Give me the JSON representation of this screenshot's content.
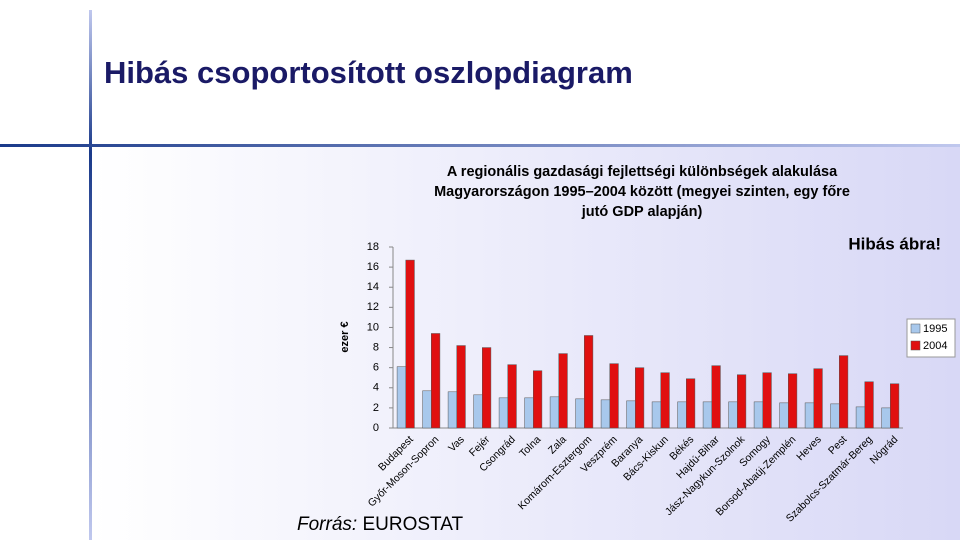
{
  "slide_title": "Hibás csoportosított oszlopdiagram",
  "source": {
    "label": "Forrás:",
    "text": "EUROSTAT"
  },
  "chart_data": {
    "type": "bar",
    "title": [
      "A regionális gazdasági fejlettségi különbségek alakulása",
      "Magyarországon 1995–2004 között (megyei szinten, egy főre",
      "jutó GDP alapján)"
    ],
    "annotation": "Hibás ábra!",
    "y_label": "ezer €",
    "categories": [
      "Budapest",
      "Győr-Moson-Sopron",
      "Vas",
      "Fejér",
      "Csongrád",
      "Tolna",
      "Zala",
      "Komárom-Esztergom",
      "Veszprém",
      "Baranya",
      "Bács-Kiskun",
      "Békés",
      "Hajdú-Bihar",
      "Jász-Nagykun-Szolnok",
      "Somogy",
      "Borsod-Abaúj-Zemplén",
      "Heves",
      "Pest",
      "Szabolcs-Szatmár-Bereg",
      "Nógrád"
    ],
    "series": [
      {
        "name": "1995",
        "color": "#a8c8ec",
        "values": [
          6.1,
          3.7,
          3.6,
          3.3,
          3.0,
          3.0,
          3.1,
          2.9,
          2.8,
          2.7,
          2.6,
          2.6,
          2.6,
          2.6,
          2.6,
          2.5,
          2.5,
          2.4,
          2.1,
          2.0
        ]
      },
      {
        "name": "2004",
        "color": "#e01010",
        "values": [
          16.7,
          9.4,
          8.2,
          8.0,
          6.3,
          5.7,
          7.4,
          9.2,
          6.4,
          6.0,
          5.5,
          4.9,
          6.2,
          5.3,
          5.5,
          5.4,
          5.9,
          7.2,
          4.6,
          4.4
        ]
      }
    ],
    "ylim": [
      0,
      18
    ],
    "yticks": [
      0,
      2,
      4,
      6,
      8,
      10,
      12,
      14,
      16,
      18
    ],
    "legend": "right"
  }
}
